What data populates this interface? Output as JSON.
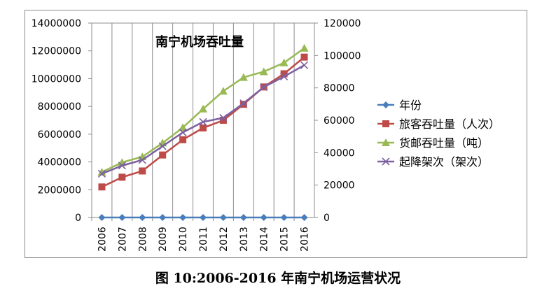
{
  "caption": "图 10:2006-2016 年南宁机场运营状况",
  "chart_data": {
    "type": "line",
    "title": "南宁机场吞吐量",
    "categories": [
      "2006",
      "2007",
      "2008",
      "2009",
      "2010",
      "2011",
      "2012",
      "2013",
      "2014",
      "2015",
      "2016"
    ],
    "left_ylim": [
      0,
      14000000
    ],
    "left_yticks": [
      "0",
      "2000000",
      "4000000",
      "6000000",
      "8000000",
      "10000000",
      "12000000",
      "14000000"
    ],
    "right_ylim": [
      0,
      120000
    ],
    "right_yticks": [
      "0",
      "20000",
      "40000",
      "60000",
      "80000",
      "100000",
      "120000"
    ],
    "grid": true,
    "legend_position": "right",
    "series": [
      {
        "name": "年份",
        "axis": "left",
        "color": "#4a7ebb",
        "marker": "diamond",
        "values": [
          2006,
          2007,
          2008,
          2009,
          2010,
          2011,
          2012,
          2013,
          2014,
          2015,
          2016
        ]
      },
      {
        "name": "旅客吞吐量（人次）",
        "axis": "left",
        "color": "#be4b48",
        "marker": "square",
        "values": [
          2200000,
          2900000,
          3350000,
          4500000,
          5600000,
          6450000,
          7000000,
          8150000,
          9400000,
          10350000,
          11550000
        ]
      },
      {
        "name": "货邮吞吐量（吨）",
        "axis": "right",
        "color": "#98b954",
        "marker": "triangle",
        "values": [
          28000,
          34000,
          37500,
          46000,
          55500,
          67000,
          78000,
          86500,
          90000,
          95500,
          104500
        ]
      },
      {
        "name": "起降架次（架次）",
        "axis": "right",
        "color": "#7d60a0",
        "marker": "x",
        "values": [
          27000,
          32000,
          35500,
          44000,
          52500,
          59000,
          61500,
          70500,
          80500,
          87000,
          94000
        ]
      }
    ]
  }
}
